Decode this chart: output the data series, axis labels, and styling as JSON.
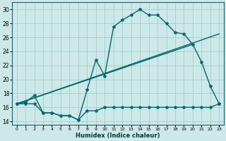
{
  "xlabel": "Humidex (Indice chaleur)",
  "background_color": "#cce8e8",
  "grid_color": "#aad0d0",
  "line_color": "#006868",
  "xlim": [
    -0.5,
    23.5
  ],
  "ylim": [
    13.5,
    31.0
  ],
  "xticks": [
    0,
    1,
    2,
    3,
    4,
    5,
    6,
    7,
    8,
    9,
    10,
    11,
    12,
    13,
    14,
    15,
    16,
    17,
    18,
    19,
    20,
    21,
    22,
    23
  ],
  "yticks": [
    14,
    16,
    18,
    20,
    22,
    24,
    26,
    28,
    30
  ],
  "curve1_x": [
    0,
    1,
    2,
    3,
    4,
    5,
    6,
    7,
    8,
    9,
    10,
    11,
    12,
    13,
    14,
    15,
    16,
    17,
    18,
    19,
    20,
    21,
    22,
    23
  ],
  "curve1_y": [
    16.5,
    16.7,
    17.7,
    15.2,
    15.2,
    14.8,
    14.8,
    14.2,
    18.5,
    22.8,
    20.5,
    27.5,
    28.5,
    29.2,
    30.0,
    29.2,
    29.2,
    28.0,
    26.7,
    26.5,
    25.0,
    22.5,
    19.0,
    16.5
  ],
  "curve2_x": [
    0,
    1,
    2,
    3,
    4,
    5,
    6,
    7,
    8,
    9,
    10,
    11,
    12,
    13,
    14,
    15,
    16,
    17,
    18,
    19,
    20,
    21,
    22,
    23
  ],
  "curve2_y": [
    16.5,
    16.5,
    16.5,
    15.2,
    15.2,
    14.8,
    14.8,
    14.2,
    15.5,
    15.5,
    16.0,
    16.0,
    16.0,
    16.0,
    16.0,
    16.0,
    16.0,
    16.0,
    16.0,
    16.0,
    16.0,
    16.0,
    16.0,
    16.5
  ],
  "line3_x": [
    0,
    20
  ],
  "line3_y": [
    16.5,
    25.0
  ],
  "line4_x": [
    0,
    23
  ],
  "line4_y": [
    16.5,
    26.5
  ]
}
